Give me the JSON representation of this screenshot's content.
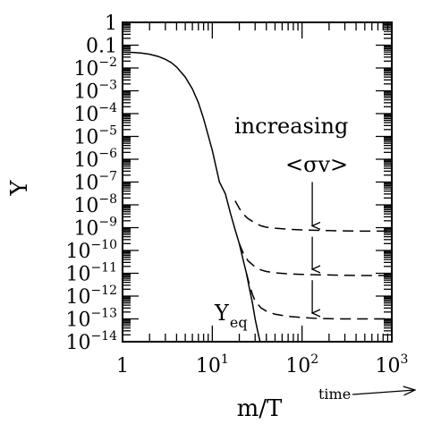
{
  "chart_data": {
    "type": "line",
    "xlabel": "m/T",
    "ylabel": "Y",
    "x_scale": "log",
    "y_scale": "log",
    "xlim": [
      1,
      1000
    ],
    "ylim": [
      1e-14,
      1
    ],
    "grid": false,
    "x_tick_labels": [
      {
        "value": 1,
        "base": "1",
        "exp": ""
      },
      {
        "value": 10,
        "base": "10",
        "exp": "1"
      },
      {
        "value": 100,
        "base": "10",
        "exp": "2"
      },
      {
        "value": 1000,
        "base": "10",
        "exp": "3"
      }
    ],
    "y_tick_labels": [
      {
        "value": 1,
        "base": "1",
        "exp": ""
      },
      {
        "value": 0.1,
        "base": "0.1",
        "exp": ""
      },
      {
        "value": 0.01,
        "base": "10",
        "exp": "−2"
      },
      {
        "value": 0.001,
        "base": "10",
        "exp": "−3"
      },
      {
        "value": 0.0001,
        "base": "10",
        "exp": "−4"
      },
      {
        "value": 1e-05,
        "base": "10",
        "exp": "−5"
      },
      {
        "value": 1e-06,
        "base": "10",
        "exp": "−6"
      },
      {
        "value": 1e-07,
        "base": "10",
        "exp": "−7"
      },
      {
        "value": 1e-08,
        "base": "10",
        "exp": "−8"
      },
      {
        "value": 1e-09,
        "base": "10",
        "exp": "−9"
      },
      {
        "value": 1e-10,
        "base": "10",
        "exp": "−10"
      },
      {
        "value": 1e-11,
        "base": "10",
        "exp": "−11"
      },
      {
        "value": 1e-12,
        "base": "10",
        "exp": "−12"
      },
      {
        "value": 1e-13,
        "base": "10",
        "exp": "−13"
      },
      {
        "value": 1e-14,
        "base": "10",
        "exp": "−14"
      }
    ],
    "series": [
      {
        "style": "solid",
        "x": [
          1,
          1.3,
          1.6,
          2,
          2.5,
          3,
          3.5,
          4,
          5,
          6,
          7,
          8,
          10,
          12,
          14,
          16,
          18,
          20,
          22,
          24,
          26,
          28,
          30,
          32,
          34
        ],
        "y": [
          0.05,
          0.048,
          0.045,
          0.04,
          0.032,
          0.024,
          0.017,
          0.011,
          0.004,
          0.0012,
          0.0003,
          6e-05,
          2.5e-06,
          1e-07,
          3e-08,
          4e-09,
          8e-10,
          2e-10,
          4e-11,
          1e-11,
          2e-12,
          5e-13,
          1e-13,
          3e-14,
          1e-14
        ]
      },
      {
        "style": "dashed",
        "x": [
          18,
          20,
          22,
          25,
          30,
          35,
          40,
          50,
          70,
          100,
          150,
          200,
          300,
          500,
          700,
          1000
        ],
        "y": [
          1.5e-08,
          7e-09,
          4e-09,
          2.5e-09,
          1.6e-09,
          1.2e-09,
          1.05e-09,
          9.5e-10,
          8.5e-10,
          8e-10,
          7.6e-10,
          7.4e-10,
          7.2e-10,
          7e-10,
          7e-10,
          7e-10
        ]
      },
      {
        "style": "dashed",
        "x": [
          20,
          22,
          25,
          30,
          35,
          40,
          50,
          70,
          100,
          150,
          200,
          300,
          500,
          700,
          1000
        ],
        "y": [
          2e-10,
          8e-11,
          3.5e-11,
          1.9e-11,
          1.4e-11,
          1.2e-11,
          1.05e-11,
          9.5e-12,
          9e-12,
          8.6e-12,
          8.4e-12,
          8.2e-12,
          8e-12,
          8e-12,
          8e-12
        ]
      },
      {
        "style": "dashed",
        "x": [
          24,
          26,
          28,
          30,
          35,
          40,
          50,
          70,
          100,
          150,
          200,
          300,
          500,
          700,
          1000
        ],
        "y": [
          1e-11,
          3e-12,
          1.2e-12,
          6e-13,
          3e-13,
          2.2e-13,
          1.6e-13,
          1.3e-13,
          1.15e-13,
          1.05e-13,
          1.02e-13,
          1e-13,
          1e-13,
          1e-13,
          1e-13
        ]
      }
    ],
    "arrows": [
      {
        "x": 130,
        "y_from": 1e-07,
        "y_to": 1.2e-09
      },
      {
        "x": 130,
        "y_from": 4e-10,
        "y_to": 1.5e-11
      },
      {
        "x": 130,
        "y_from": 5e-12,
        "y_to": 1.8e-13
      }
    ],
    "annotations": {
      "increasing": "increasing",
      "sigma_v": "<σv>",
      "y_eq_main": "Y",
      "y_eq_sub": "eq",
      "time_label": "time"
    }
  }
}
